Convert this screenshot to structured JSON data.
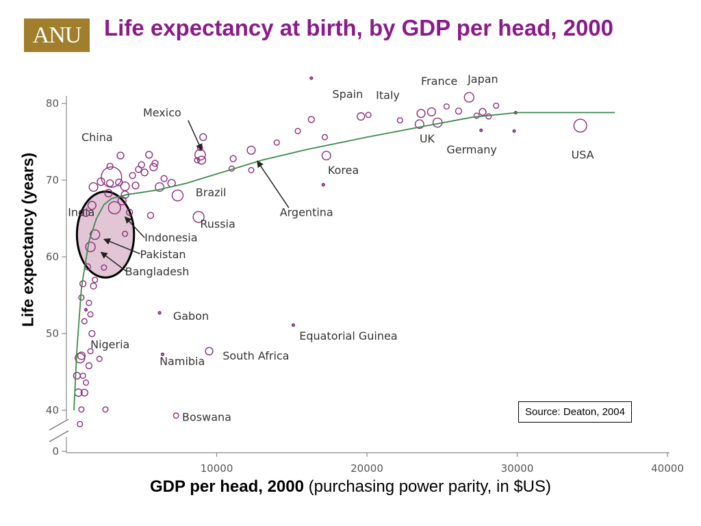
{
  "logo_text": "ANU",
  "chart_data": {
    "type": "scatter",
    "title": "Life expectancy at birth, by GDP per head, 2000",
    "xlabel_bold": "GDP per head, 2000",
    "xlabel_rest": " (purchasing power parity, in $US)",
    "ylabel": "Life expectancy (years)",
    "xlim": [
      0,
      40000
    ],
    "ylim": [
      0,
      80
    ],
    "y_axis_break": [
      0,
      40
    ],
    "x_ticks": [
      {
        "value": 10000,
        "label": "10000"
      },
      {
        "value": 20000,
        "label": "20000"
      },
      {
        "value": 30000,
        "label": "30000"
      },
      {
        "value": 40000,
        "label": "40000"
      }
    ],
    "y_ticks": [
      {
        "value": 0,
        "label": "0"
      },
      {
        "value": 40,
        "label": "40"
      },
      {
        "value": 50,
        "label": "50"
      },
      {
        "value": 60,
        "label": "60"
      },
      {
        "value": 70,
        "label": "70"
      },
      {
        "value": 80,
        "label": "80"
      }
    ],
    "source_note": "Source: Deaton, 2004",
    "colors": {
      "point": "#8b2a7a",
      "curve": "#3a8a4a",
      "title": "#8b1a8b",
      "highlight_fill": "#e2c6d6"
    },
    "curve": [
      {
        "x": 500,
        "y": 40
      },
      {
        "x": 700,
        "y": 48
      },
      {
        "x": 1000,
        "y": 56
      },
      {
        "x": 1500,
        "y": 62
      },
      {
        "x": 2000,
        "y": 65
      },
      {
        "x": 2500,
        "y": 66.8
      },
      {
        "x": 3000,
        "y": 67.6
      },
      {
        "x": 4000,
        "y": 68.1
      },
      {
        "x": 6000,
        "y": 68.7
      },
      {
        "x": 8000,
        "y": 69.6
      },
      {
        "x": 10000,
        "y": 70.8
      },
      {
        "x": 13000,
        "y": 72.6
      },
      {
        "x": 16000,
        "y": 74
      },
      {
        "x": 20000,
        "y": 75.6
      },
      {
        "x": 24000,
        "y": 77.1
      },
      {
        "x": 27000,
        "y": 78.2
      },
      {
        "x": 30000,
        "y": 78.8
      },
      {
        "x": 36500,
        "y": 78.8
      }
    ],
    "points": [
      {
        "x": 3000,
        "y": 70.4,
        "size": 4.5
      },
      {
        "x": 8900,
        "y": 73.3,
        "size": 1.2
      },
      {
        "x": 3200,
        "y": 66.4,
        "size": 1.6
      },
      {
        "x": 7400,
        "y": 68.0,
        "size": 1.3
      },
      {
        "x": 8800,
        "y": 65.2,
        "size": 1.3
      },
      {
        "x": 12300,
        "y": 73.9,
        "size": 0.7
      },
      {
        "x": 34200,
        "y": 77.1,
        "size": 1.8
      },
      {
        "x": 26800,
        "y": 80.8,
        "size": 1.0
      },
      {
        "x": 24700,
        "y": 77.5,
        "size": 0.9
      },
      {
        "x": 23500,
        "y": 77.3,
        "size": 0.8
      },
      {
        "x": 17300,
        "y": 73.2,
        "size": 0.8
      },
      {
        "x": 23600,
        "y": 78.7,
        "size": 0.7
      },
      {
        "x": 24300,
        "y": 78.9,
        "size": 0.7
      },
      {
        "x": 19600,
        "y": 78.3,
        "size": 0.6
      },
      {
        "x": 27700,
        "y": 78.9,
        "size": 0.5
      },
      {
        "x": 9500,
        "y": 47.7,
        "size": 0.6
      },
      {
        "x": 1900,
        "y": 62.9,
        "size": 1.0
      },
      {
        "x": 1600,
        "y": 61.3,
        "size": 1.0
      },
      {
        "x": 1700,
        "y": 66.7,
        "size": 0.7
      },
      {
        "x": 900,
        "y": 46.8,
        "size": 1.0
      },
      {
        "x": 1000,
        "y": 47.1,
        "size": 0.6
      },
      {
        "x": 800,
        "y": 42.3,
        "size": 0.6
      },
      {
        "x": 1200,
        "y": 42.3,
        "size": 0.5
      },
      {
        "x": 700,
        "y": 44.5,
        "size": 0.5
      },
      {
        "x": 1300,
        "y": 65.7,
        "size": 0.5
      },
      {
        "x": 1400,
        "y": 58.7,
        "size": 0.4
      },
      {
        "x": 1100,
        "y": 56.5,
        "size": 0.4
      },
      {
        "x": 1800,
        "y": 56.2,
        "size": 0.4
      },
      {
        "x": 2500,
        "y": 58.6,
        "size": 0.3
      },
      {
        "x": 1900,
        "y": 57.0,
        "size": 0.3
      },
      {
        "x": 1500,
        "y": 54.0,
        "size": 0.3
      },
      {
        "x": 1700,
        "y": 50.0,
        "size": 0.4
      },
      {
        "x": 1600,
        "y": 47.7,
        "size": 0.3
      },
      {
        "x": 2200,
        "y": 46.7,
        "size": 0.3
      },
      {
        "x": 1500,
        "y": 45.8,
        "size": 0.4
      },
      {
        "x": 1300,
        "y": 43.6,
        "size": 0.3
      },
      {
        "x": 1100,
        "y": 44.5,
        "size": 0.3
      },
      {
        "x": 1000,
        "y": 40.1,
        "size": 0.3
      },
      {
        "x": 900,
        "y": 38.2,
        "size": 0.3
      },
      {
        "x": 2600,
        "y": 40.1,
        "size": 0.3
      },
      {
        "x": 1200,
        "y": 51.6,
        "size": 0.3
      },
      {
        "x": 1600,
        "y": 52.5,
        "size": 0.3
      },
      {
        "x": 1300,
        "y": 53.1,
        "size": 0.2
      },
      {
        "x": 1000,
        "y": 54.7,
        "size": 0.3
      },
      {
        "x": 1800,
        "y": 69.1,
        "size": 0.8
      },
      {
        "x": 2300,
        "y": 69.8,
        "size": 0.6
      },
      {
        "x": 2900,
        "y": 69.6,
        "size": 0.5
      },
      {
        "x": 3500,
        "y": 69.7,
        "size": 0.5
      },
      {
        "x": 3900,
        "y": 69.2,
        "size": 0.8
      },
      {
        "x": 4600,
        "y": 69.3,
        "size": 0.5
      },
      {
        "x": 5200,
        "y": 71.0,
        "size": 0.5
      },
      {
        "x": 5800,
        "y": 71.7,
        "size": 0.6
      },
      {
        "x": 6200,
        "y": 69.1,
        "size": 0.8
      },
      {
        "x": 7000,
        "y": 69.6,
        "size": 0.6
      },
      {
        "x": 3700,
        "y": 67.3,
        "size": 0.7
      },
      {
        "x": 3900,
        "y": 68.1,
        "size": 0.6
      },
      {
        "x": 2800,
        "y": 68.3,
        "size": 0.6
      },
      {
        "x": 4200,
        "y": 65.8,
        "size": 0.4
      },
      {
        "x": 3600,
        "y": 73.2,
        "size": 0.5
      },
      {
        "x": 2900,
        "y": 71.8,
        "size": 0.4
      },
      {
        "x": 5500,
        "y": 73.3,
        "size": 0.5
      },
      {
        "x": 5900,
        "y": 72.2,
        "size": 0.4
      },
      {
        "x": 5000,
        "y": 72.0,
        "size": 0.4
      },
      {
        "x": 5600,
        "y": 65.4,
        "size": 0.4
      },
      {
        "x": 4400,
        "y": 70.6,
        "size": 0.4
      },
      {
        "x": 4800,
        "y": 71.4,
        "size": 0.4
      },
      {
        "x": 6500,
        "y": 70.2,
        "size": 0.4
      },
      {
        "x": 9000,
        "y": 72.6,
        "size": 0.7
      },
      {
        "x": 9100,
        "y": 75.6,
        "size": 0.5
      },
      {
        "x": 8900,
        "y": 74.2,
        "size": 0.3
      },
      {
        "x": 8700,
        "y": 72.6,
        "size": 0.3
      },
      {
        "x": 11100,
        "y": 72.8,
        "size": 0.4
      },
      {
        "x": 11000,
        "y": 71.5,
        "size": 0.3
      },
      {
        "x": 12300,
        "y": 71.3,
        "size": 0.3
      },
      {
        "x": 14000,
        "y": 74.9,
        "size": 0.3
      },
      {
        "x": 15400,
        "y": 76.4,
        "size": 0.3
      },
      {
        "x": 16300,
        "y": 77.9,
        "size": 0.4
      },
      {
        "x": 17200,
        "y": 75.6,
        "size": 0.3
      },
      {
        "x": 20100,
        "y": 78.5,
        "size": 0.3
      },
      {
        "x": 22200,
        "y": 77.8,
        "size": 0.3
      },
      {
        "x": 25300,
        "y": 79.6,
        "size": 0.3
      },
      {
        "x": 26100,
        "y": 79.0,
        "size": 0.4
      },
      {
        "x": 27300,
        "y": 78.4,
        "size": 0.3
      },
      {
        "x": 28600,
        "y": 79.7,
        "size": 0.3
      },
      {
        "x": 29800,
        "y": 76.4,
        "size": 0.2
      },
      {
        "x": 27600,
        "y": 76.5,
        "size": 0.2
      },
      {
        "x": 29900,
        "y": 78.8,
        "size": 0.2
      },
      {
        "x": 28100,
        "y": 78.3,
        "size": 0.3
      },
      {
        "x": 17100,
        "y": 69.4,
        "size": 0.2
      },
      {
        "x": 3900,
        "y": 63.0,
        "size": 0.3
      },
      {
        "x": 7300,
        "y": 39.3,
        "size": 0.3
      },
      {
        "x": 6400,
        "y": 47.3,
        "size": 0.2
      },
      {
        "x": 6200,
        "y": 52.7,
        "size": 0.2
      },
      {
        "x": 15100,
        "y": 51.1,
        "size": 0.2
      },
      {
        "x": 16300,
        "y": 83.3,
        "size": 0.2
      }
    ],
    "annotations": [
      {
        "text": "China",
        "x": 1000,
        "y": 75.1
      },
      {
        "text": "Mexico",
        "x": 5100,
        "y": 78.3
      },
      {
        "text": "India",
        "x": 100,
        "y": 65.3
      },
      {
        "text": "Indonesia",
        "x": 5200,
        "y": 62.0
      },
      {
        "text": "Pakistan",
        "x": 4900,
        "y": 59.8
      },
      {
        "text": "Bangladesh",
        "x": 3900,
        "y": 57.6
      },
      {
        "text": "Brazil",
        "x": 8600,
        "y": 67.9
      },
      {
        "text": "Russia",
        "x": 8900,
        "y": 63.8
      },
      {
        "text": "Argentina",
        "x": 14200,
        "y": 65.3
      },
      {
        "text": "Spain",
        "x": 17700,
        "y": 80.7
      },
      {
        "text": "Italy",
        "x": 20600,
        "y": 80.6
      },
      {
        "text": "France",
        "x": 23600,
        "y": 82.4
      },
      {
        "text": "Japan",
        "x": 26700,
        "y": 82.7
      },
      {
        "text": "UK",
        "x": 23500,
        "y": 74.9
      },
      {
        "text": "Germany",
        "x": 25300,
        "y": 73.5
      },
      {
        "text": "USA",
        "x": 33600,
        "y": 72.8
      },
      {
        "text": "Korea",
        "x": 17400,
        "y": 70.8
      },
      {
        "text": "Gabon",
        "x": 7100,
        "y": 51.8
      },
      {
        "text": "Equatorial Guinea",
        "x": 15500,
        "y": 49.2
      },
      {
        "text": "Nigeria",
        "x": 1600,
        "y": 48.1
      },
      {
        "text": "Namibia",
        "x": 6200,
        "y": 45.9
      },
      {
        "text": "South Africa",
        "x": 10400,
        "y": 46.6
      },
      {
        "text": "Boswana",
        "x": 7700,
        "y": 38.6
      }
    ],
    "arrows": [
      {
        "from": [
          8100,
          77.8
        ],
        "to": [
          9000,
          73.9
        ]
      },
      {
        "from": [
          14800,
          66.4
        ],
        "to": [
          12700,
          72.5
        ]
      },
      {
        "from": [
          5200,
          62.5
        ],
        "to": [
          3900,
          65.2
        ]
      },
      {
        "from": [
          4900,
          60.4
        ],
        "to": [
          2500,
          62.3
        ]
      },
      {
        "from": [
          4000,
          58.1
        ],
        "to": [
          2300,
          60.6
        ]
      }
    ],
    "highlight": {
      "x": 2600,
      "y": 62.9,
      "rx": 1900,
      "ry_years": 5.6
    }
  }
}
